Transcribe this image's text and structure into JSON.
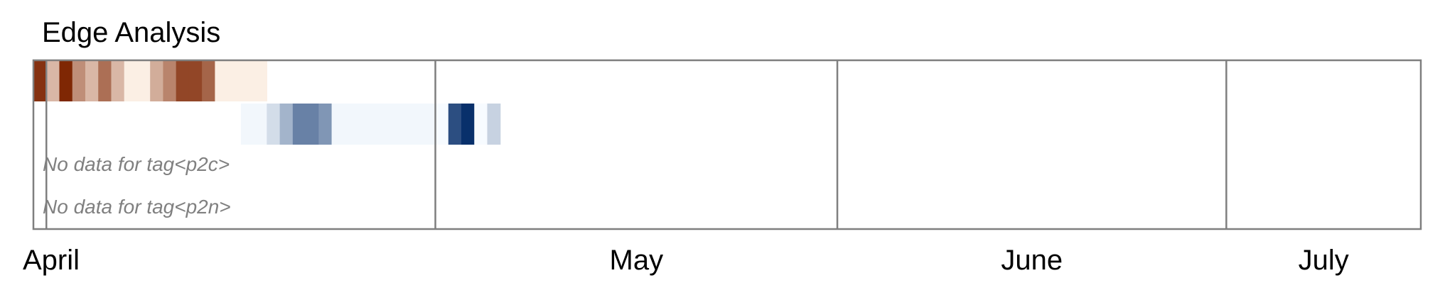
{
  "chart_data": {
    "type": "heatmap",
    "title": "Edge Analysis",
    "xlabel": "",
    "ylabel": "",
    "grid": false,
    "month_labels": [
      "April",
      "May",
      "June",
      "July"
    ],
    "month_starts": [
      "2026-04-01",
      "2026-05-01",
      "2026-06-01",
      "2026-07-01"
    ],
    "x_range": [
      "2026-03-31",
      "2026-07-16"
    ],
    "rows": [
      {
        "row": 0,
        "palette": "Oranges",
        "color_min": "#fff5eb",
        "color_max": "#7f2704",
        "cells": [
          {
            "date": "2026-03-31",
            "value": 0.95
          },
          {
            "date": "2026-04-01",
            "value": 0.3
          },
          {
            "date": "2026-04-02",
            "value": 1.0
          },
          {
            "date": "2026-04-03",
            "value": 0.5
          },
          {
            "date": "2026-04-04",
            "value": 0.3
          },
          {
            "date": "2026-04-05",
            "value": 0.65
          },
          {
            "date": "2026-04-06",
            "value": 0.3
          },
          {
            "date": "2026-04-07",
            "value": 0.03
          },
          {
            "date": "2026-04-08",
            "value": 0.03
          },
          {
            "date": "2026-04-09",
            "value": 0.35
          },
          {
            "date": "2026-04-10",
            "value": 0.55
          },
          {
            "date": "2026-04-11",
            "value": 0.85
          },
          {
            "date": "2026-04-12",
            "value": 0.85
          },
          {
            "date": "2026-04-13",
            "value": 0.7
          },
          {
            "date": "2026-04-14",
            "value": 0.03
          },
          {
            "date": "2026-04-15",
            "value": 0.03
          },
          {
            "date": "2026-04-16",
            "value": 0.03
          },
          {
            "date": "2026-04-17",
            "value": 0.03
          }
        ]
      },
      {
        "row": 1,
        "palette": "Blues",
        "color_min": "#f7fbff",
        "color_max": "#08306b",
        "cells": [
          {
            "date": "2026-04-16",
            "value": 0.02
          },
          {
            "date": "2026-04-17",
            "value": 0.02
          },
          {
            "date": "2026-04-18",
            "value": 0.15
          },
          {
            "date": "2026-04-19",
            "value": 0.35
          },
          {
            "date": "2026-04-20",
            "value": 0.6
          },
          {
            "date": "2026-04-21",
            "value": 0.6
          },
          {
            "date": "2026-04-22",
            "value": 0.5
          },
          {
            "date": "2026-04-23",
            "value": 0.02
          },
          {
            "date": "2026-04-24",
            "value": 0.02
          },
          {
            "date": "2026-04-25",
            "value": 0.02
          },
          {
            "date": "2026-04-26",
            "value": 0.02
          },
          {
            "date": "2026-04-27",
            "value": 0.02
          },
          {
            "date": "2026-04-28",
            "value": 0.02
          },
          {
            "date": "2026-04-29",
            "value": 0.02
          },
          {
            "date": "2026-04-30",
            "value": 0.02
          },
          {
            "date": "2026-05-01",
            "value": 0.0
          },
          {
            "date": "2026-05-02",
            "value": 0.85
          },
          {
            "date": "2026-05-03",
            "value": 1.0
          },
          {
            "date": "2026-05-04",
            "value": 0.0
          },
          {
            "date": "2026-05-05",
            "value": 0.2
          }
        ]
      },
      {
        "row": 2,
        "label": "No data for tag<p2c>",
        "cells": []
      },
      {
        "row": 3,
        "label": "No data for tag<p2n>",
        "cells": []
      }
    ]
  }
}
